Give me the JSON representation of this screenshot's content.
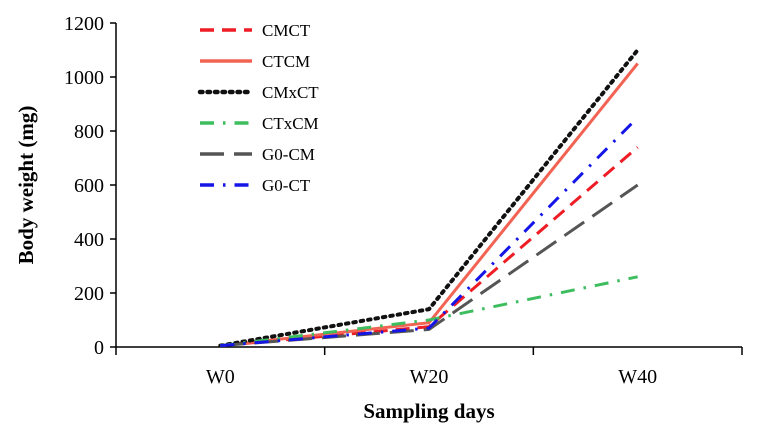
{
  "chart_data": {
    "type": "line",
    "title": "",
    "xlabel": "Sampling days",
    "ylabel": "Body weight (mg)",
    "categories": [
      "W0",
      "W20",
      "W40"
    ],
    "ylim": [
      0,
      1200
    ],
    "yticks": [
      0,
      200,
      400,
      600,
      800,
      1000,
      1200
    ],
    "grid": false,
    "legend_position": "top-left",
    "series": [
      {
        "name": "CMCT",
        "values": [
          5,
          75,
          740
        ],
        "color": "#ee1c25",
        "style": "dash"
      },
      {
        "name": "CTCM",
        "values": [
          5,
          90,
          1050
        ],
        "color": "#f26354",
        "style": "solid"
      },
      {
        "name": "CMxCT",
        "values": [
          5,
          140,
          1100
        ],
        "color": "#111111",
        "style": "dot"
      },
      {
        "name": "CTxCM",
        "values": [
          5,
          100,
          260
        ],
        "color": "#3dbd5e",
        "style": "dashdot"
      },
      {
        "name": "G0-CM",
        "values": [
          5,
          65,
          600
        ],
        "color": "#555555",
        "style": "longdash"
      },
      {
        "name": "G0-CT",
        "values": [
          5,
          70,
          850
        ],
        "color": "#1515e8",
        "style": "dashdot"
      }
    ]
  }
}
